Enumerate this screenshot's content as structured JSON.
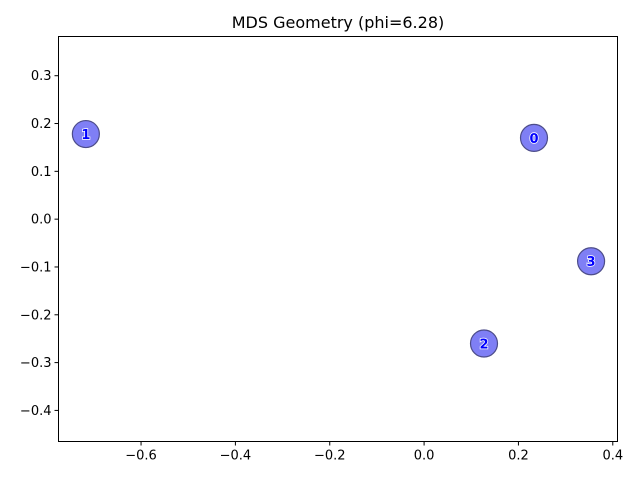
{
  "chart_data": {
    "type": "scatter",
    "title": "MDS Geometry (phi=6.28)",
    "xlabel": "",
    "ylabel": "",
    "xlim": [
      -0.775,
      0.41
    ],
    "ylim": [
      -0.465,
      0.382
    ],
    "x_ticks": [
      -0.6,
      -0.4,
      -0.2,
      0.0,
      0.2,
      0.4
    ],
    "x_tick_labels": [
      "−0.6",
      "−0.4",
      "−0.2",
      "0.0",
      "0.2",
      "0.4"
    ],
    "y_ticks": [
      -0.4,
      -0.3,
      -0.2,
      -0.1,
      0.0,
      0.1,
      0.2,
      0.3
    ],
    "y_tick_labels": [
      "−0.4",
      "−0.3",
      "−0.2",
      "−0.1",
      "0.0",
      "0.1",
      "0.2",
      "0.3"
    ],
    "grid": false,
    "points": [
      {
        "label": "0",
        "x": 0.233,
        "y": 0.17
      },
      {
        "label": "1",
        "x": -0.717,
        "y": 0.178
      },
      {
        "label": "2",
        "x": 0.127,
        "y": -0.26
      },
      {
        "label": "3",
        "x": 0.354,
        "y": -0.088
      }
    ],
    "colors": {
      "marker_fill": "#7f7ff5",
      "marker_edge": "#4d4d8a",
      "label_fill": "#0000ff",
      "label_outline": "#ffffff"
    }
  }
}
